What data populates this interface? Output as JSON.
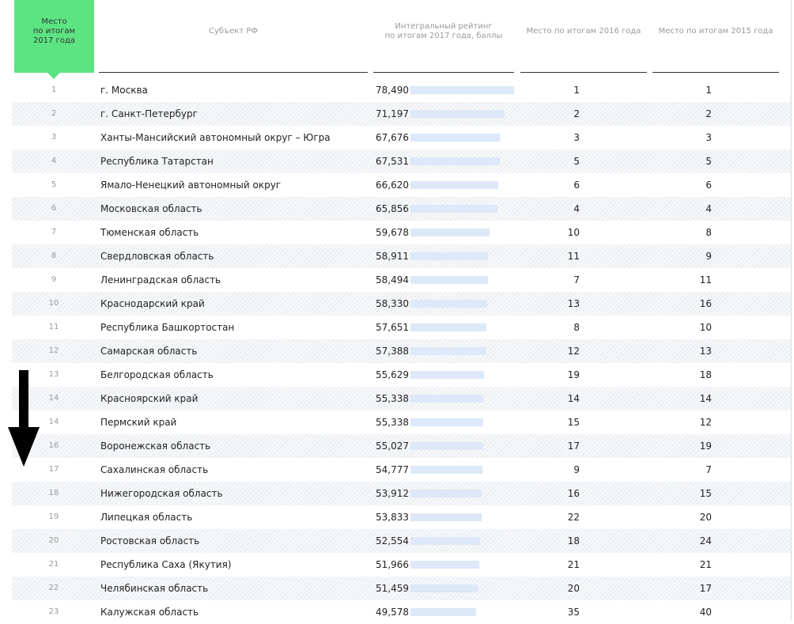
{
  "table": {
    "header": [
      "Место\nпо итогам\n2017 года",
      "Субъект РФ",
      "Интегральный рейтинг\nпо итогам 2017 года, баллы",
      "Место по итогам 2016 года",
      "Место по итогам 2015 года"
    ],
    "rows": [
      [
        1,
        "г. Москва",
        "78,490",
        1,
        1
      ],
      [
        2,
        "г. Санкт-Петербург",
        "71,197",
        2,
        2
      ],
      [
        3,
        "Ханты-Мансийский автономный округ – Югра",
        "67,676",
        3,
        3
      ],
      [
        4,
        "Республика Татарстан",
        "67,531",
        5,
        5
      ],
      [
        5,
        "Ямало-Ненецкий автономный округ",
        "66,620",
        6,
        6
      ],
      [
        6,
        "Московская область",
        "65,856",
        4,
        4
      ],
      [
        7,
        "Тюменская область",
        "59,678",
        10,
        8
      ],
      [
        8,
        "Свердловская область",
        "58,911",
        11,
        9
      ],
      [
        9,
        "Ленинградская область",
        "58,494",
        7,
        11
      ],
      [
        10,
        "Краснодарский край",
        "58,330",
        13,
        16
      ],
      [
        11,
        "Республика Башкортостан",
        "57,651",
        8,
        10
      ],
      [
        12,
        "Самарская область",
        "57,388",
        12,
        13
      ],
      [
        13,
        "Белгородская область",
        "55,629",
        19,
        18
      ],
      [
        14,
        "Красноярский край",
        "55,338",
        14,
        14
      ],
      [
        14,
        "Пермский край",
        "55,338",
        15,
        12
      ],
      [
        16,
        "Воронежская область",
        "55,027",
        17,
        19
      ],
      [
        17,
        "Сахалинская область",
        "54,777",
        9,
        7
      ],
      [
        18,
        "Нижегородская область",
        "53,912",
        16,
        15
      ],
      [
        19,
        "Липецкая область",
        "53,833",
        22,
        20
      ],
      [
        20,
        "Ростовская область",
        "52,554",
        18,
        24
      ],
      [
        21,
        "Республика Саха (Якутия)",
        "51,966",
        21,
        21
      ],
      [
        22,
        "Челябинская область",
        "51,459",
        20,
        17
      ],
      [
        23,
        "Калужская область",
        "49,578",
        35,
        40
      ]
    ]
  }
}
